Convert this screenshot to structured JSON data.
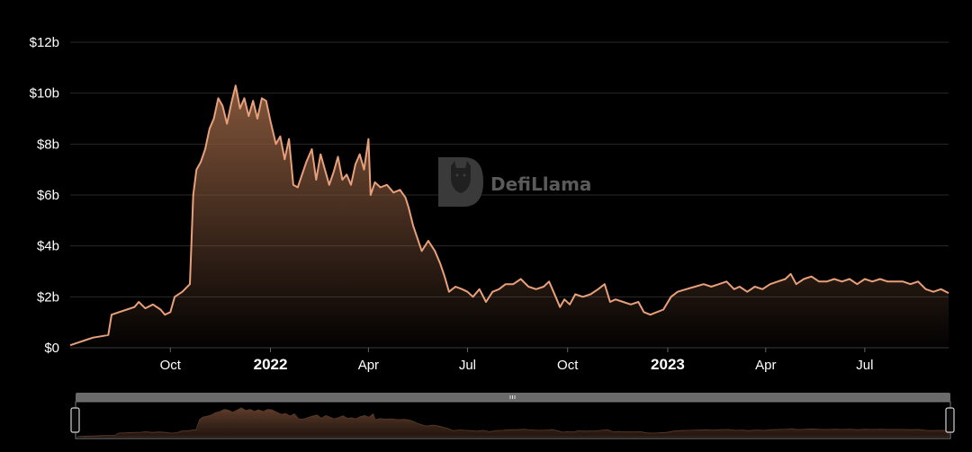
{
  "chart_data": {
    "type": "area",
    "title": "",
    "xlabel": "",
    "ylabel": "",
    "ylim": [
      0,
      12
    ],
    "y_unit": "USD billions",
    "y_ticks": [
      {
        "value": 0,
        "label": "$0"
      },
      {
        "value": 2,
        "label": "$2b"
      },
      {
        "value": 4,
        "label": "$4b"
      },
      {
        "value": 6,
        "label": "$6b"
      },
      {
        "value": 8,
        "label": "$8b"
      },
      {
        "value": 10,
        "label": "$10b"
      },
      {
        "value": 12,
        "label": "$12b"
      }
    ],
    "x_ticks": [
      {
        "date": "2021-10-01",
        "label": "Oct",
        "major": false
      },
      {
        "date": "2022-01-01",
        "label": "2022",
        "major": true
      },
      {
        "date": "2022-04-01",
        "label": "Apr",
        "major": false
      },
      {
        "date": "2022-07-01",
        "label": "Jul",
        "major": false
      },
      {
        "date": "2022-10-01",
        "label": "Oct",
        "major": false
      },
      {
        "date": "2023-01-01",
        "label": "2023",
        "major": true
      },
      {
        "date": "2023-04-01",
        "label": "Apr",
        "major": false
      },
      {
        "date": "2023-07-01",
        "label": "Jul",
        "major": false
      }
    ],
    "x_range": [
      "2021-07-01",
      "2023-09-16"
    ],
    "grid": true,
    "legend": "none",
    "colors": {
      "line": "#e8a07a",
      "fill_top": "#8a5a3e",
      "grid": "#2a2a2a",
      "background": "#000000"
    },
    "series": [
      {
        "points": [
          [
            "2021-07-01",
            0.1
          ],
          [
            "2021-07-08",
            0.2
          ],
          [
            "2021-07-15",
            0.3
          ],
          [
            "2021-07-22",
            0.4
          ],
          [
            "2021-07-29",
            0.45
          ],
          [
            "2021-08-05",
            0.5
          ],
          [
            "2021-08-08",
            1.3
          ],
          [
            "2021-08-15",
            1.4
          ],
          [
            "2021-08-22",
            1.5
          ],
          [
            "2021-08-29",
            1.6
          ],
          [
            "2021-09-02",
            1.8
          ],
          [
            "2021-09-08",
            1.55
          ],
          [
            "2021-09-15",
            1.7
          ],
          [
            "2021-09-22",
            1.5
          ],
          [
            "2021-09-26",
            1.3
          ],
          [
            "2021-10-01",
            1.4
          ],
          [
            "2021-10-05",
            2.0
          ],
          [
            "2021-10-12",
            2.2
          ],
          [
            "2021-10-19",
            2.5
          ],
          [
            "2021-10-22",
            6.0
          ],
          [
            "2021-10-25",
            7.0
          ],
          [
            "2021-10-29",
            7.3
          ],
          [
            "2021-11-02",
            7.8
          ],
          [
            "2021-11-06",
            8.6
          ],
          [
            "2021-11-10",
            9.0
          ],
          [
            "2021-11-14",
            9.8
          ],
          [
            "2021-11-18",
            9.5
          ],
          [
            "2021-11-22",
            8.8
          ],
          [
            "2021-11-26",
            9.6
          ],
          [
            "2021-11-30",
            10.3
          ],
          [
            "2021-12-04",
            9.4
          ],
          [
            "2021-12-08",
            9.8
          ],
          [
            "2021-12-12",
            9.1
          ],
          [
            "2021-12-16",
            9.7
          ],
          [
            "2021-12-20",
            9.0
          ],
          [
            "2021-12-24",
            9.8
          ],
          [
            "2021-12-28",
            9.7
          ],
          [
            "2022-01-01",
            8.9
          ],
          [
            "2022-01-06",
            8.0
          ],
          [
            "2022-01-10",
            8.3
          ],
          [
            "2022-01-14",
            7.4
          ],
          [
            "2022-01-18",
            8.2
          ],
          [
            "2022-01-22",
            6.4
          ],
          [
            "2022-01-26",
            6.3
          ],
          [
            "2022-01-30",
            6.8
          ],
          [
            "2022-02-03",
            7.3
          ],
          [
            "2022-02-08",
            7.8
          ],
          [
            "2022-02-12",
            6.6
          ],
          [
            "2022-02-16",
            7.6
          ],
          [
            "2022-02-20",
            7.0
          ],
          [
            "2022-02-24",
            6.4
          ],
          [
            "2022-02-28",
            6.9
          ],
          [
            "2022-03-04",
            7.5
          ],
          [
            "2022-03-08",
            6.6
          ],
          [
            "2022-03-12",
            6.8
          ],
          [
            "2022-03-16",
            6.4
          ],
          [
            "2022-03-20",
            7.2
          ],
          [
            "2022-03-24",
            7.6
          ],
          [
            "2022-03-28",
            7.0
          ],
          [
            "2022-04-01",
            8.2
          ],
          [
            "2022-04-03",
            6.0
          ],
          [
            "2022-04-07",
            6.5
          ],
          [
            "2022-04-12",
            6.3
          ],
          [
            "2022-04-18",
            6.4
          ],
          [
            "2022-04-24",
            6.1
          ],
          [
            "2022-04-30",
            6.2
          ],
          [
            "2022-05-05",
            5.9
          ],
          [
            "2022-05-08",
            5.5
          ],
          [
            "2022-05-12",
            4.8
          ],
          [
            "2022-05-16",
            4.3
          ],
          [
            "2022-05-20",
            3.8
          ],
          [
            "2022-05-26",
            4.2
          ],
          [
            "2022-06-01",
            3.8
          ],
          [
            "2022-06-06",
            3.3
          ],
          [
            "2022-06-10",
            2.8
          ],
          [
            "2022-06-14",
            2.2
          ],
          [
            "2022-06-20",
            2.4
          ],
          [
            "2022-06-26",
            2.3
          ],
          [
            "2022-07-01",
            2.2
          ],
          [
            "2022-07-06",
            2.0
          ],
          [
            "2022-07-12",
            2.3
          ],
          [
            "2022-07-18",
            1.8
          ],
          [
            "2022-07-24",
            2.2
          ],
          [
            "2022-07-30",
            2.3
          ],
          [
            "2022-08-05",
            2.5
          ],
          [
            "2022-08-12",
            2.5
          ],
          [
            "2022-08-19",
            2.7
          ],
          [
            "2022-08-26",
            2.4
          ],
          [
            "2022-09-02",
            2.3
          ],
          [
            "2022-09-09",
            2.4
          ],
          [
            "2022-09-14",
            2.6
          ],
          [
            "2022-09-20",
            2.0
          ],
          [
            "2022-09-24",
            1.6
          ],
          [
            "2022-09-28",
            1.9
          ],
          [
            "2022-10-03",
            1.7
          ],
          [
            "2022-10-08",
            2.1
          ],
          [
            "2022-10-15",
            2.0
          ],
          [
            "2022-10-22",
            2.1
          ],
          [
            "2022-10-29",
            2.3
          ],
          [
            "2022-11-04",
            2.5
          ],
          [
            "2022-11-09",
            1.8
          ],
          [
            "2022-11-14",
            1.9
          ],
          [
            "2022-11-21",
            1.8
          ],
          [
            "2022-11-28",
            1.7
          ],
          [
            "2022-12-05",
            1.8
          ],
          [
            "2022-12-10",
            1.4
          ],
          [
            "2022-12-16",
            1.3
          ],
          [
            "2022-12-22",
            1.4
          ],
          [
            "2022-12-28",
            1.5
          ],
          [
            "2023-01-04",
            2.0
          ],
          [
            "2023-01-10",
            2.2
          ],
          [
            "2023-01-18",
            2.3
          ],
          [
            "2023-01-26",
            2.4
          ],
          [
            "2023-02-03",
            2.5
          ],
          [
            "2023-02-10",
            2.4
          ],
          [
            "2023-02-17",
            2.5
          ],
          [
            "2023-02-24",
            2.6
          ],
          [
            "2023-03-03",
            2.3
          ],
          [
            "2023-03-08",
            2.4
          ],
          [
            "2023-03-15",
            2.2
          ],
          [
            "2023-03-22",
            2.4
          ],
          [
            "2023-03-29",
            2.3
          ],
          [
            "2023-04-05",
            2.5
          ],
          [
            "2023-04-12",
            2.6
          ],
          [
            "2023-04-19",
            2.7
          ],
          [
            "2023-04-24",
            2.9
          ],
          [
            "2023-04-29",
            2.5
          ],
          [
            "2023-05-06",
            2.7
          ],
          [
            "2023-05-13",
            2.8
          ],
          [
            "2023-05-20",
            2.6
          ],
          [
            "2023-05-27",
            2.6
          ],
          [
            "2023-06-03",
            2.7
          ],
          [
            "2023-06-10",
            2.6
          ],
          [
            "2023-06-17",
            2.7
          ],
          [
            "2023-06-24",
            2.5
          ],
          [
            "2023-07-01",
            2.7
          ],
          [
            "2023-07-08",
            2.6
          ],
          [
            "2023-07-15",
            2.7
          ],
          [
            "2023-07-22",
            2.6
          ],
          [
            "2023-07-29",
            2.6
          ],
          [
            "2023-08-05",
            2.6
          ],
          [
            "2023-08-12",
            2.5
          ],
          [
            "2023-08-19",
            2.6
          ],
          [
            "2023-08-26",
            2.3
          ],
          [
            "2023-09-02",
            2.2
          ],
          [
            "2023-09-09",
            2.3
          ],
          [
            "2023-09-16",
            2.15
          ]
        ]
      }
    ]
  },
  "watermark": {
    "text": "DefiLlama",
    "icon": "llama-logo-icon"
  },
  "brush": {
    "start": 0,
    "end": 1,
    "grip_icon": "grip-lines-icon"
  }
}
